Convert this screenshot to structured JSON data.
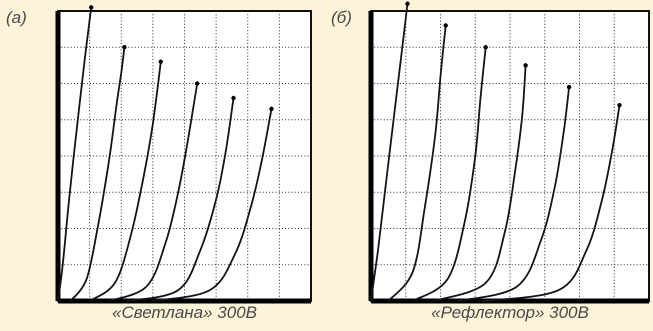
{
  "panels": [
    {
      "label": "(а)",
      "caption": "«Светлана» 300В"
    },
    {
      "label": "(б)",
      "caption": "«Рефлектор» 300В"
    }
  ],
  "chart_data": [
    {
      "type": "line",
      "title": "«Светлана» 300В",
      "xlim": [
        0,
        8
      ],
      "ylim": [
        0,
        8
      ],
      "grid": true,
      "series": [
        {
          "x": [
            0.0,
            0.15,
            0.35,
            0.6,
            0.85,
            1.05
          ],
          "y": [
            0.0,
            1.0,
            2.8,
            4.8,
            6.7,
            8.1
          ]
        },
        {
          "x": [
            0.4,
            0.9,
            1.25,
            1.6,
            1.85,
            2.0,
            2.1
          ],
          "y": [
            0.0,
            0.6,
            2.0,
            3.8,
            5.4,
            6.3,
            7.0
          ]
        },
        {
          "x": [
            1.0,
            1.8,
            2.3,
            2.7,
            3.0,
            3.25
          ],
          "y": [
            0.0,
            0.5,
            1.8,
            3.4,
            4.9,
            6.6
          ]
        },
        {
          "x": [
            1.6,
            2.8,
            3.4,
            3.8,
            4.1,
            4.4
          ],
          "y": [
            0.0,
            0.4,
            1.6,
            3.0,
            4.4,
            6.0
          ]
        },
        {
          "x": [
            2.2,
            3.8,
            4.5,
            5.0,
            5.3,
            5.55
          ],
          "y": [
            0.0,
            0.3,
            1.4,
            2.8,
            4.1,
            5.6
          ]
        },
        {
          "x": [
            3.0,
            4.8,
            5.6,
            6.1,
            6.45,
            6.75
          ],
          "y": [
            0.0,
            0.3,
            1.3,
            2.6,
            3.9,
            5.3
          ]
        }
      ]
    },
    {
      "type": "line",
      "title": "«Рефлектор» 300В",
      "xlim": [
        0,
        8
      ],
      "ylim": [
        0,
        8
      ],
      "grid": true,
      "series": [
        {
          "x": [
            0.0,
            0.2,
            0.45,
            0.7,
            0.9,
            1.05
          ],
          "y": [
            0.0,
            1.4,
            3.4,
            5.4,
            7.0,
            8.2
          ]
        },
        {
          "x": [
            0.5,
            1.2,
            1.55,
            1.85,
            2.0,
            2.15
          ],
          "y": [
            0.0,
            0.8,
            2.6,
            4.6,
            6.2,
            7.6
          ]
        },
        {
          "x": [
            1.2,
            2.2,
            2.7,
            3.0,
            3.15,
            3.3
          ],
          "y": [
            0.0,
            0.6,
            2.2,
            4.0,
            5.6,
            7.0
          ]
        },
        {
          "x": [
            1.8,
            3.3,
            3.85,
            4.15,
            4.35,
            4.45
          ],
          "y": [
            0.0,
            0.5,
            1.9,
            3.6,
            5.1,
            6.5
          ]
        },
        {
          "x": [
            2.5,
            4.2,
            4.9,
            5.3,
            5.55,
            5.7
          ],
          "y": [
            0.0,
            0.4,
            1.7,
            3.2,
            4.7,
            5.9
          ]
        },
        {
          "x": [
            3.2,
            5.4,
            6.2,
            6.65,
            6.95,
            7.15
          ],
          "y": [
            0.0,
            0.3,
            1.4,
            2.8,
            4.2,
            5.4
          ]
        }
      ]
    }
  ]
}
